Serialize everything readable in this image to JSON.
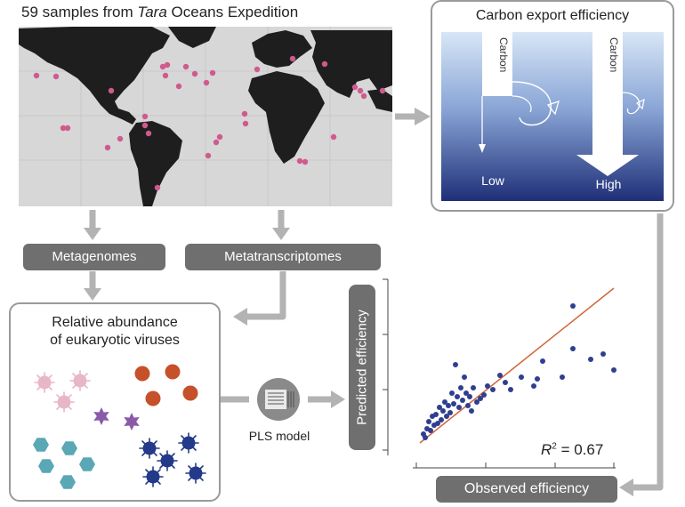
{
  "map": {
    "title_prefix": "59 samples from ",
    "title_italic": "Tara",
    "title_suffix": " Oceans Expedition",
    "sample_color": "#d05a8e"
  },
  "carbon_panel": {
    "title": "Carbon export efficiency",
    "flow_label": "Carbon",
    "low_label": "Low",
    "high_label": "High",
    "gradient_top": "#cfe0f5",
    "gradient_bottom": "#1f2f78"
  },
  "labels": {
    "metagenomes": "Metagenomes",
    "metatranscriptomes": "Metatranscriptomes",
    "pls_model": "PLS model",
    "predicted": "Predicted efficiency",
    "observed": "Observed efficiency"
  },
  "virus_panel": {
    "title_line1": "Relative abundance",
    "title_line2": "of eukaryotic viruses",
    "colors": {
      "pink": "#e8b6c9",
      "orange": "#c6502a",
      "purple": "#8a5aa8",
      "teal": "#5aa7b5",
      "navy": "#233a8a"
    }
  },
  "scatter": {
    "r2_prefix": "R",
    "r2_sup": "2",
    "r2_value": " = 0.67",
    "point_color": "#2e3f8f",
    "line_color": "#d0663a"
  },
  "icons": [
    "map-icon",
    "virus-icon",
    "model-icon",
    "arrow-icon"
  ]
}
